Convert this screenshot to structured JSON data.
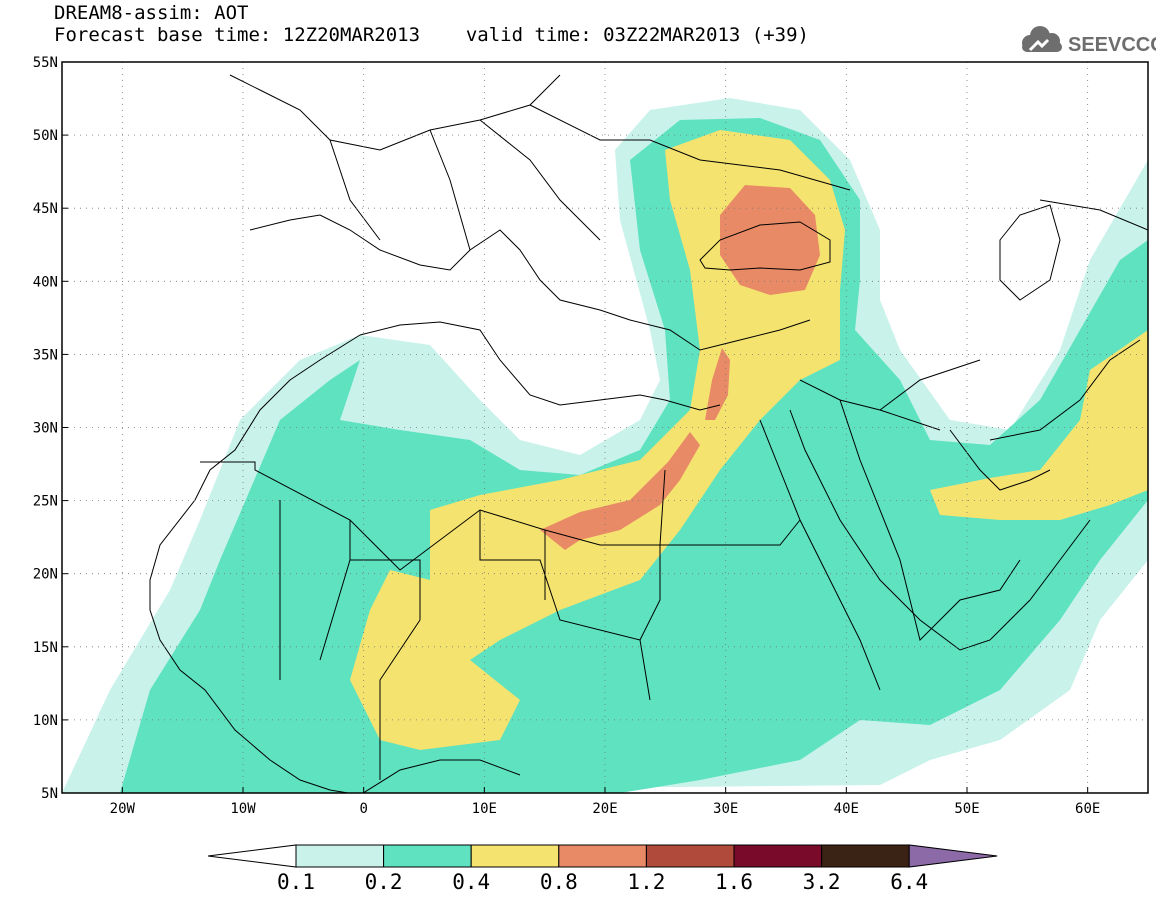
{
  "header": {
    "line1": "DREAM8-assim: AOT",
    "base_label": "Forecast base time: 12Z20MAR2013",
    "valid_label": "valid time: 03Z22MAR2013 (+39)"
  },
  "logo": {
    "text": "SEEVCCC",
    "icon": "cloud-icon",
    "color": "#6e6e6e"
  },
  "map": {
    "lon_range": [
      -25,
      65
    ],
    "lat_range": [
      5,
      55
    ],
    "lon_ticks": [
      {
        "value": -20,
        "label": "20W"
      },
      {
        "value": -10,
        "label": "10W"
      },
      {
        "value": 0,
        "label": "0"
      },
      {
        "value": 10,
        "label": "10E"
      },
      {
        "value": 20,
        "label": "20E"
      },
      {
        "value": 30,
        "label": "30E"
      },
      {
        "value": 40,
        "label": "40E"
      },
      {
        "value": 50,
        "label": "50E"
      },
      {
        "value": 60,
        "label": "60E"
      }
    ],
    "lat_ticks": [
      {
        "value": 55,
        "label": "55N"
      },
      {
        "value": 50,
        "label": "50N"
      },
      {
        "value": 45,
        "label": "45N"
      },
      {
        "value": 40,
        "label": "40N"
      },
      {
        "value": 35,
        "label": "35N"
      },
      {
        "value": 30,
        "label": "30N"
      },
      {
        "value": 25,
        "label": "25N"
      },
      {
        "value": 20,
        "label": "20N"
      },
      {
        "value": 15,
        "label": "15N"
      },
      {
        "value": 10,
        "label": "10N"
      },
      {
        "value": 5,
        "label": "5N"
      }
    ],
    "grid": true,
    "colorbar": {
      "levels": [
        "0.1",
        "0.2",
        "0.4",
        "0.8",
        "1.2",
        "1.6",
        "3.2",
        "6.4"
      ],
      "colors": [
        "#c8f2ea",
        "#5ee2c0",
        "#f5e370",
        "#e88a66",
        "#b04a3a",
        "#7a0a2a",
        "#3a2214",
        "#8c6aa8"
      ],
      "under_color": "#ffffff",
      "over_color": "#8c6aa8"
    }
  }
}
